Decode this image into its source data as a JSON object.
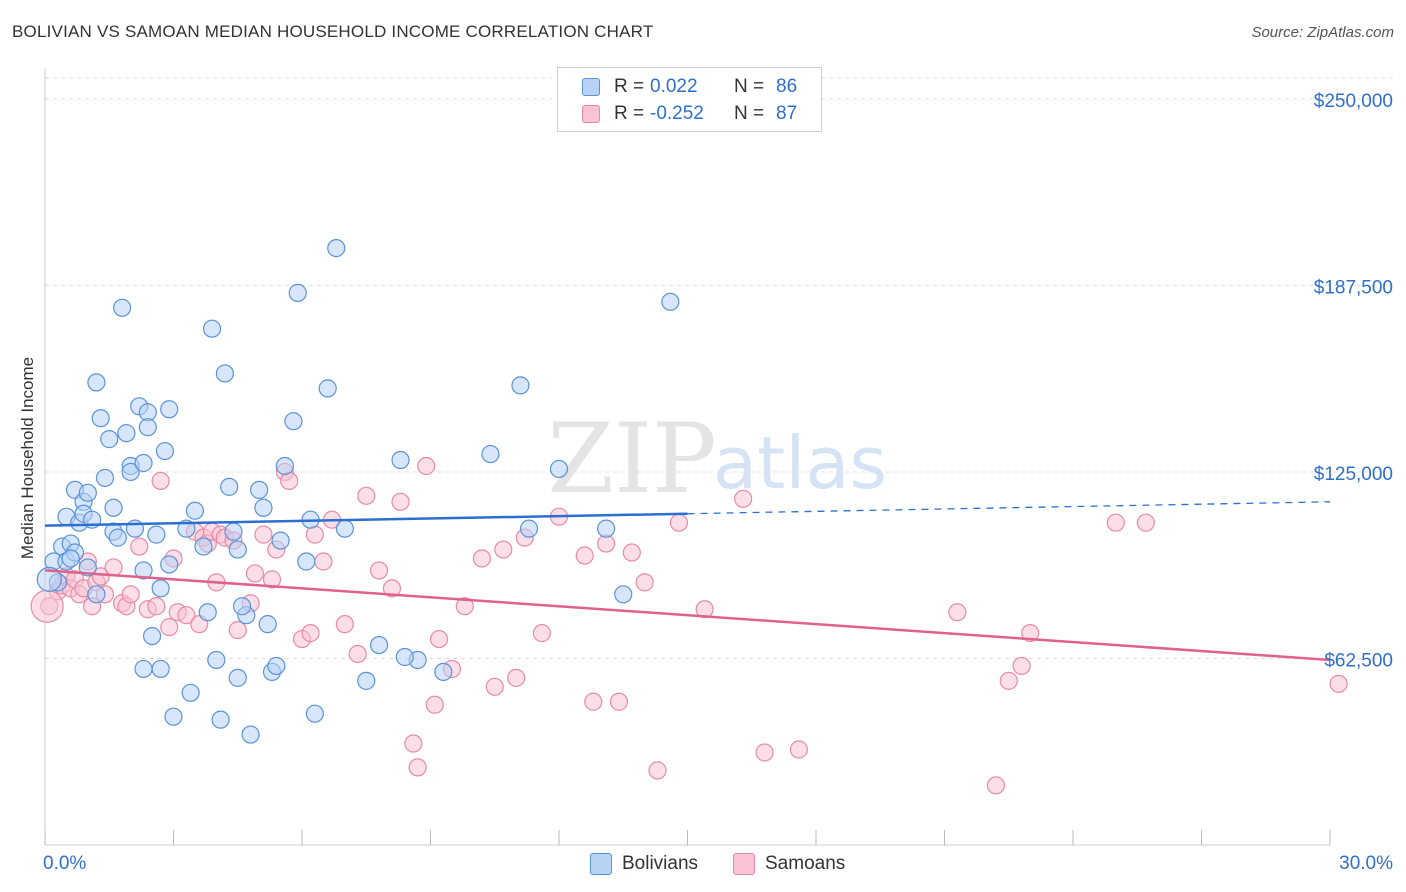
{
  "title": "BOLIVIAN VS SAMOAN MEDIAN HOUSEHOLD INCOME CORRELATION CHART",
  "source": "Source: ZipAtlas.com",
  "watermark": {
    "zip": "ZIP",
    "atlas": "atlas"
  },
  "legend": {
    "rows": [
      {
        "r_label": "R =",
        "r_value": "0.022",
        "n_label": "N =",
        "n_value": "86"
      },
      {
        "r_label": "R =",
        "r_value": "-0.252",
        "n_label": "N =",
        "n_value": "87"
      }
    ],
    "bottom": [
      "Bolivians",
      "Samoans"
    ]
  },
  "colors": {
    "blue_fill": "#b7d2f5",
    "blue_stroke": "#5b93d9",
    "blue_line": "#2b6fcf",
    "pink_fill": "#f8c3d4",
    "pink_stroke": "#e88aa8",
    "pink_line": "#e0628c",
    "grid": "#dddddd",
    "axis_text": "#2f6fcc"
  },
  "chart_data": {
    "type": "scatter",
    "xlabel": "",
    "ylabel": "Median Household Income",
    "xlim": [
      0,
      30
    ],
    "ylim": [
      0,
      257000
    ],
    "x_tick_labels": [
      "0.0%",
      "30.0%"
    ],
    "y_ticks": [
      62500,
      125000,
      187500,
      250000
    ],
    "y_tick_labels": [
      "$62,500",
      "$125,000",
      "$187,500",
      "$250,000"
    ],
    "grid": true,
    "legend_position": "top-center",
    "series": [
      {
        "name": "Bolivians",
        "trend": {
          "x0": 0,
          "y0": 107000,
          "x1": 15,
          "y1": 111000,
          "x_dash_end": 30,
          "y_dash_end": 115000
        },
        "points": [
          [
            0.2,
            95000
          ],
          [
            0.3,
            88000
          ],
          [
            0.4,
            100000
          ],
          [
            0.5,
            95000
          ],
          [
            0.5,
            110000
          ],
          [
            0.6,
            101000
          ],
          [
            0.7,
            98000
          ],
          [
            0.7,
            119000
          ],
          [
            0.8,
            108000
          ],
          [
            0.9,
            115000
          ],
          [
            0.9,
            111000
          ],
          [
            1.0,
            118000
          ],
          [
            1.1,
            109000
          ],
          [
            1.2,
            155000
          ],
          [
            1.3,
            143000
          ],
          [
            1.4,
            123000
          ],
          [
            1.5,
            136000
          ],
          [
            1.6,
            113000
          ],
          [
            1.6,
            105000
          ],
          [
            1.7,
            103000
          ],
          [
            1.8,
            180000
          ],
          [
            1.9,
            138000
          ],
          [
            2.0,
            127000
          ],
          [
            2.0,
            125000
          ],
          [
            2.1,
            106000
          ],
          [
            2.2,
            147000
          ],
          [
            2.3,
            128000
          ],
          [
            2.4,
            145000
          ],
          [
            2.4,
            140000
          ],
          [
            2.6,
            104000
          ],
          [
            2.7,
            86000
          ],
          [
            2.8,
            132000
          ],
          [
            2.9,
            94000
          ],
          [
            2.9,
            146000
          ],
          [
            3.3,
            106000
          ],
          [
            3.5,
            112000
          ],
          [
            3.7,
            100000
          ],
          [
            3.8,
            78000
          ],
          [
            2.3,
            92000
          ],
          [
            2.3,
            59000
          ],
          [
            2.7,
            59000
          ],
          [
            3.4,
            51000
          ],
          [
            3.9,
            173000
          ],
          [
            4.0,
            62000
          ],
          [
            4.2,
            158000
          ],
          [
            4.3,
            120000
          ],
          [
            4.4,
            105000
          ],
          [
            4.5,
            56000
          ],
          [
            4.5,
            99000
          ],
          [
            4.7,
            77000
          ],
          [
            4.8,
            37000
          ],
          [
            5.0,
            119000
          ],
          [
            5.1,
            113000
          ],
          [
            5.3,
            58000
          ],
          [
            5.4,
            60000
          ],
          [
            5.5,
            102000
          ],
          [
            5.6,
            127000
          ],
          [
            5.8,
            142000
          ],
          [
            5.9,
            185000
          ],
          [
            6.1,
            95000
          ],
          [
            6.3,
            44000
          ],
          [
            6.6,
            153000
          ],
          [
            6.8,
            200000
          ],
          [
            7.0,
            106000
          ],
          [
            7.8,
            67000
          ],
          [
            8.3,
            129000
          ],
          [
            8.7,
            62000
          ],
          [
            9.3,
            58000
          ],
          [
            10.4,
            131000
          ],
          [
            11.1,
            154000
          ],
          [
            11.3,
            106000
          ],
          [
            12.0,
            126000
          ],
          [
            13.1,
            106000
          ],
          [
            13.5,
            84000
          ],
          [
            14.6,
            182000
          ],
          [
            2.5,
            70000
          ],
          [
            4.1,
            42000
          ],
          [
            8.4,
            63000
          ],
          [
            7.5,
            55000
          ],
          [
            3.0,
            43000
          ],
          [
            1.0,
            93000
          ],
          [
            0.6,
            96000
          ],
          [
            5.2,
            74000
          ],
          [
            6.2,
            109000
          ],
          [
            4.6,
            80000
          ],
          [
            1.2,
            84000
          ]
        ]
      },
      {
        "name": "Samoans",
        "trend": {
          "x0": 0,
          "y0": 92000,
          "x1": 30,
          "y1": 62000
        },
        "points": [
          [
            0.1,
            80000
          ],
          [
            0.3,
            85000
          ],
          [
            0.4,
            87000
          ],
          [
            0.5,
            90000
          ],
          [
            0.6,
            86000
          ],
          [
            0.7,
            89000
          ],
          [
            0.8,
            84000
          ],
          [
            0.9,
            86000
          ],
          [
            1.0,
            95000
          ],
          [
            1.1,
            80000
          ],
          [
            1.2,
            88000
          ],
          [
            1.3,
            90000
          ],
          [
            1.4,
            84000
          ],
          [
            1.6,
            93000
          ],
          [
            1.8,
            81000
          ],
          [
            1.9,
            80000
          ],
          [
            2.0,
            84000
          ],
          [
            2.2,
            100000
          ],
          [
            2.4,
            79000
          ],
          [
            2.6,
            80000
          ],
          [
            2.7,
            122000
          ],
          [
            2.9,
            73000
          ],
          [
            3.0,
            96000
          ],
          [
            3.1,
            78000
          ],
          [
            3.3,
            77000
          ],
          [
            3.5,
            105000
          ],
          [
            3.6,
            74000
          ],
          [
            3.7,
            103000
          ],
          [
            3.8,
            101000
          ],
          [
            3.9,
            105000
          ],
          [
            4.0,
            88000
          ],
          [
            4.1,
            104000
          ],
          [
            4.2,
            103000
          ],
          [
            4.4,
            102000
          ],
          [
            4.5,
            72000
          ],
          [
            4.8,
            81000
          ],
          [
            4.9,
            91000
          ],
          [
            5.1,
            104000
          ],
          [
            5.3,
            89000
          ],
          [
            5.4,
            99000
          ],
          [
            5.6,
            125000
          ],
          [
            5.7,
            122000
          ],
          [
            6.0,
            69000
          ],
          [
            6.2,
            71000
          ],
          [
            6.3,
            104000
          ],
          [
            6.5,
            95000
          ],
          [
            6.7,
            109000
          ],
          [
            7.0,
            74000
          ],
          [
            7.3,
            64000
          ],
          [
            7.5,
            117000
          ],
          [
            7.8,
            92000
          ],
          [
            8.1,
            86000
          ],
          [
            8.3,
            115000
          ],
          [
            8.6,
            34000
          ],
          [
            8.7,
            26000
          ],
          [
            8.9,
            127000
          ],
          [
            9.1,
            47000
          ],
          [
            9.2,
            69000
          ],
          [
            9.5,
            59000
          ],
          [
            9.8,
            80000
          ],
          [
            10.2,
            96000
          ],
          [
            10.5,
            53000
          ],
          [
            10.7,
            99000
          ],
          [
            11.0,
            56000
          ],
          [
            11.2,
            103000
          ],
          [
            11.6,
            71000
          ],
          [
            12.0,
            110000
          ],
          [
            12.6,
            97000
          ],
          [
            12.8,
            48000
          ],
          [
            13.1,
            101000
          ],
          [
            13.4,
            48000
          ],
          [
            13.7,
            98000
          ],
          [
            14.0,
            88000
          ],
          [
            14.3,
            25000
          ],
          [
            14.8,
            108000
          ],
          [
            15.4,
            79000
          ],
          [
            16.3,
            116000
          ],
          [
            16.8,
            31000
          ],
          [
            17.6,
            32000
          ],
          [
            21.3,
            78000
          ],
          [
            22.2,
            20000
          ],
          [
            22.5,
            55000
          ],
          [
            22.8,
            60000
          ],
          [
            23.0,
            71000
          ],
          [
            25.0,
            108000
          ],
          [
            25.7,
            108000
          ],
          [
            30.2,
            54000
          ]
        ]
      }
    ]
  }
}
